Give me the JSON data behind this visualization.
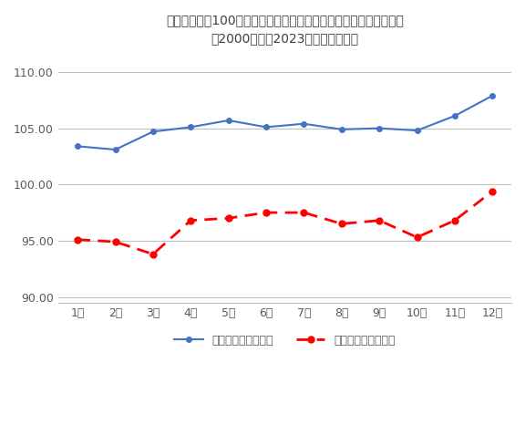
{
  "title_line1": "前年末終値を100と基準化した日経平均株価の月足高値安値の推移",
  "title_line2": "（2000年から2023年までの平均）",
  "months": [
    "1月",
    "2月",
    "3月",
    "4月",
    "5月",
    "6月",
    "7月",
    "8月",
    "9月",
    "10月",
    "11月",
    "12月"
  ],
  "high_values": [
    103.4,
    103.1,
    104.7,
    105.1,
    105.7,
    105.1,
    105.4,
    104.9,
    105.0,
    104.8,
    106.1,
    107.9
  ],
  "low_values": [
    95.1,
    94.9,
    93.8,
    96.8,
    97.0,
    97.5,
    97.5,
    96.5,
    96.8,
    95.3,
    96.8,
    99.4
  ],
  "high_color": "#4472C4",
  "low_color": "#FF0000",
  "high_label": "基準値高値（平均）",
  "low_label": "基準値安値（平均）",
  "ylim": [
    89.5,
    111.5
  ],
  "yticks": [
    90.0,
    95.0,
    100.0,
    105.0,
    110.0
  ],
  "grid_color": "#C0C0C0",
  "bg_color": "#FFFFFF",
  "title_color": "#404040"
}
